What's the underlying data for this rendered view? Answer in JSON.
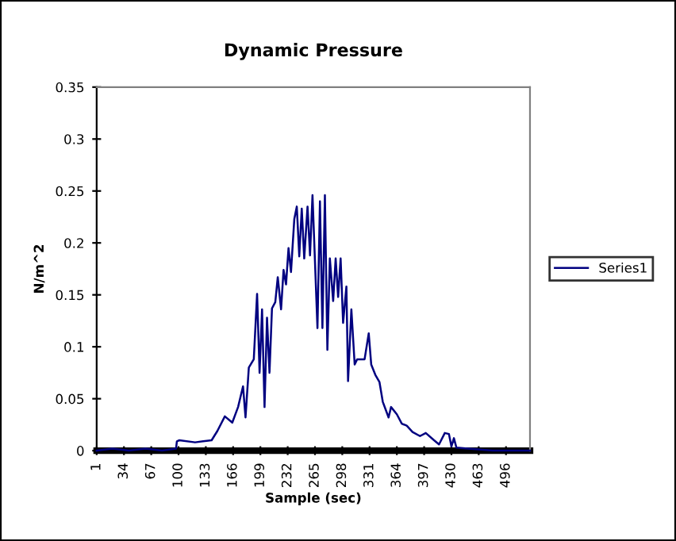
{
  "chart_data": {
    "type": "line",
    "title": "Dynamic Pressure",
    "xlabel": "Sample (sec)",
    "ylabel": "N/m^2",
    "x": [
      1,
      20,
      40,
      60,
      80,
      97,
      98,
      101,
      120,
      140,
      147,
      156,
      165,
      172,
      178,
      181,
      185,
      191,
      195,
      198,
      201,
      204,
      207,
      210,
      213,
      217,
      220,
      224,
      227,
      230,
      233,
      236,
      240,
      243,
      246,
      249,
      252,
      256,
      259,
      262,
      268,
      271,
      274,
      277,
      280,
      283,
      287,
      290,
      293,
      296,
      299,
      303,
      305,
      309,
      313,
      316,
      325,
      330,
      333,
      338,
      343,
      347,
      354,
      357,
      364,
      370,
      376,
      383,
      392,
      399,
      409,
      415,
      422,
      427,
      430,
      433,
      436,
      450,
      480,
      525
    ],
    "series": [
      {
        "name": "Series1",
        "color": "#000080",
        "values": [
          0,
          0.002,
          0,
          0.002,
          0,
          0.002,
          0.009,
          0.01,
          0.008,
          0.01,
          0.019,
          0.033,
          0.027,
          0.042,
          0.062,
          0.032,
          0.08,
          0.088,
          0.151,
          0.075,
          0.136,
          0.042,
          0.128,
          0.075,
          0.137,
          0.143,
          0.167,
          0.136,
          0.174,
          0.16,
          0.195,
          0.172,
          0.223,
          0.235,
          0.187,
          0.233,
          0.185,
          0.235,
          0.188,
          0.246,
          0.118,
          0.24,
          0.118,
          0.246,
          0.097,
          0.185,
          0.144,
          0.185,
          0.148,
          0.185,
          0.123,
          0.158,
          0.067,
          0.136,
          0.083,
          0.088,
          0.088,
          0.113,
          0.083,
          0.073,
          0.066,
          0.047,
          0.032,
          0.042,
          0.035,
          0.026,
          0.024,
          0.018,
          0.014,
          0.017,
          0.01,
          0.006,
          0.017,
          0.016,
          0.004,
          0.012,
          0.003,
          0.002,
          0,
          0
        ]
      }
    ],
    "xlim": [
      1,
      525
    ],
    "xticks": [
      1,
      34,
      67,
      100,
      133,
      166,
      199,
      232,
      265,
      298,
      331,
      364,
      397,
      430,
      463,
      496
    ],
    "ylim": [
      0,
      0.35
    ],
    "yticks": [
      0,
      0.05,
      0.1,
      0.15,
      0.2,
      0.25,
      0.3,
      0.35
    ],
    "legend": "right",
    "grid": false
  }
}
